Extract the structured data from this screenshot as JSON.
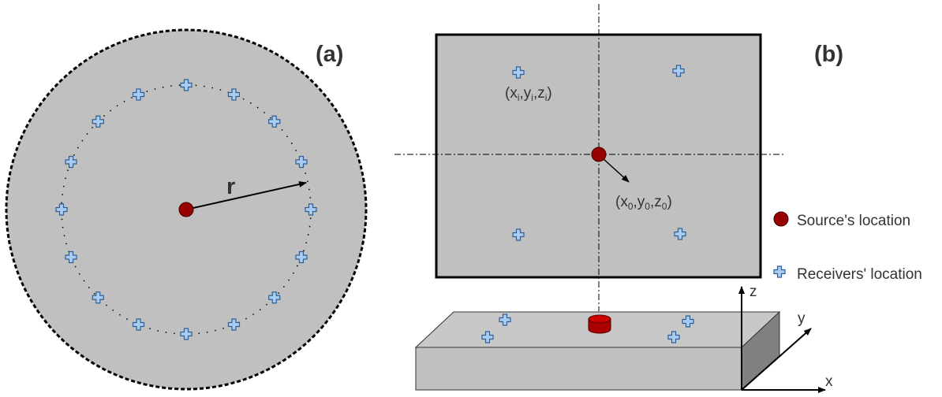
{
  "panel_a": {
    "label": "(a)",
    "radius_label": "r"
  },
  "panel_b": {
    "label": "(b)",
    "receiver_coord": [
      "(x",
      "i",
      ",y",
      "i",
      ",z",
      "i",
      ")"
    ],
    "source_coord": [
      "(x",
      "0",
      ",y",
      "0",
      ",z",
      "0",
      ")"
    ]
  },
  "legend": {
    "source": "Source's location",
    "receivers": "Receivers' location"
  },
  "axes": {
    "x": "x",
    "y": "y",
    "z": "z"
  }
}
